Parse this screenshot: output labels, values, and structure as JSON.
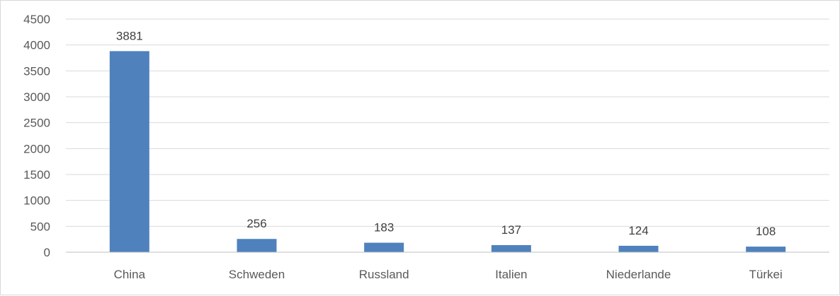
{
  "chart_data": {
    "type": "bar",
    "title": "",
    "xlabel": "",
    "ylabel": "",
    "categories": [
      "China",
      "Schweden",
      "Russland",
      "Italien",
      "Niederlande",
      "Türkei"
    ],
    "values": [
      3881,
      256,
      183,
      137,
      124,
      108
    ],
    "data_labels": [
      "3881",
      "256",
      "183",
      "137",
      "124",
      "108"
    ],
    "ylim": [
      0,
      4500
    ],
    "yticks": [
      0,
      500,
      1000,
      1500,
      2000,
      2500,
      3000,
      3500,
      4000,
      4500
    ],
    "ytick_labels": [
      "0",
      "500",
      "1000",
      "1500",
      "2000",
      "2500",
      "3000",
      "3500",
      "4000",
      "4500"
    ],
    "grid": true,
    "legend": "none",
    "colors": {
      "bar": "#4f81bd",
      "grid": "#d9d9d9",
      "axis": "#bfbfbf",
      "tick_text": "#595959",
      "label_text": "#404040"
    }
  }
}
